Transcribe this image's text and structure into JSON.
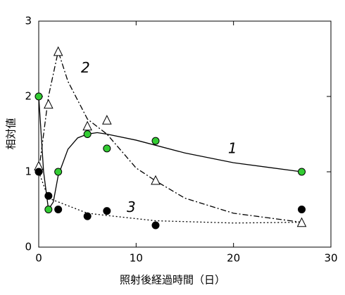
{
  "chart_data": {
    "type": "scatter",
    "xlabel": "照射後経過時間（日）",
    "ylabel": "相対値",
    "xlim": [
      0,
      30
    ],
    "xticks": [
      0,
      10,
      20,
      30
    ],
    "ylim": [
      0,
      3
    ],
    "yticks": [
      0,
      1,
      2,
      3
    ],
    "series": [
      {
        "marker": "circle",
        "color": "#33cc33",
        "x": [
          0,
          1,
          2,
          5,
          7,
          12,
          27
        ],
        "values": [
          2.0,
          0.5,
          1.0,
          1.5,
          1.31,
          1.41,
          1.0
        ]
      },
      {
        "marker": "triangle",
        "color": "#ffffff",
        "x": [
          0,
          1,
          2,
          5,
          7,
          12,
          27
        ],
        "values": [
          1.07,
          1.89,
          2.59,
          1.6,
          1.68,
          0.88,
          0.32
        ]
      },
      {
        "marker": "circle",
        "color": "#000000",
        "x": [
          0,
          1,
          2,
          5,
          7,
          12,
          27
        ],
        "values": [
          1.0,
          0.68,
          0.5,
          0.41,
          0.48,
          0.29,
          0.5
        ]
      }
    ],
    "fits": [
      {
        "dash": "none",
        "x": [
          0,
          0.5,
          1,
          1.5,
          2,
          3,
          4,
          5,
          6,
          7,
          10,
          15,
          20,
          27
        ],
        "values": [
          2.0,
          1.0,
          0.5,
          0.6,
          0.95,
          1.3,
          1.45,
          1.5,
          1.52,
          1.5,
          1.42,
          1.25,
          1.12,
          1.0
        ]
      },
      {
        "dash": "8 3 2 3",
        "x": [
          0,
          1,
          2,
          3,
          5,
          7,
          10,
          12,
          15,
          20,
          27
        ],
        "values": [
          1.0,
          2.0,
          2.6,
          2.2,
          1.7,
          1.5,
          1.05,
          0.88,
          0.65,
          0.45,
          0.33
        ]
      },
      {
        "dash": "2 3",
        "x": [
          0,
          1,
          2,
          5,
          7,
          12,
          20,
          27
        ],
        "values": [
          1.0,
          0.65,
          0.6,
          0.45,
          0.42,
          0.35,
          0.32,
          0.33
        ]
      }
    ],
    "annotations": [
      {
        "text": "1",
        "x": 19.9,
        "y": 1.3
      },
      {
        "text": "2",
        "x": 4.8,
        "y": 2.37
      },
      {
        "text": "3",
        "x": 9.5,
        "y": 0.52
      }
    ]
  }
}
